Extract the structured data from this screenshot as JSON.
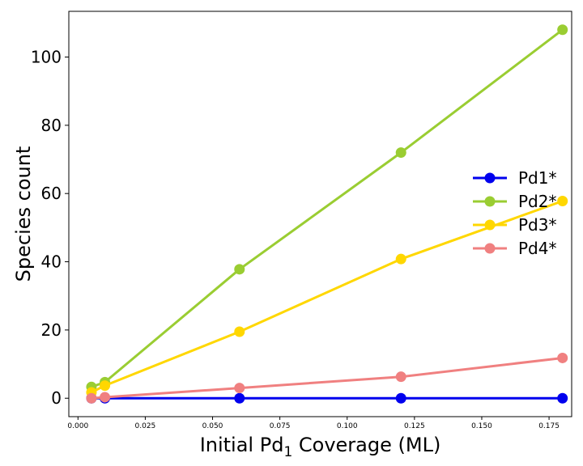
{
  "chart_data": {
    "type": "line",
    "xlabel": {
      "main": "Initial Pd",
      "sub": "1",
      "tail": " Coverage (ML)"
    },
    "ylabel": "Species count",
    "xlim": [
      -0.0034,
      0.1834
    ],
    "ylim": [
      -5.4,
      113.4
    ],
    "xticks": [
      0.0,
      0.025,
      0.05,
      0.075,
      0.1,
      0.125,
      0.15,
      0.175
    ],
    "xtick_labels": [
      "0.000",
      "0.025",
      "0.050",
      "0.075",
      "0.100",
      "0.125",
      "0.150",
      "0.175"
    ],
    "yticks": [
      0,
      20,
      40,
      60,
      80,
      100
    ],
    "ytick_labels": [
      "0",
      "20",
      "40",
      "60",
      "80",
      "100"
    ],
    "grid": false,
    "legend_position": "right",
    "x": [
      0.005,
      0.01,
      0.06,
      0.12,
      0.18
    ],
    "series": [
      {
        "name": "Pd1*",
        "color": "#0000ee",
        "values": [
          0,
          0,
          0,
          0,
          0
        ]
      },
      {
        "name": "Pd2*",
        "color": "#9acd32",
        "values": [
          3.3,
          4.7,
          37.8,
          72,
          108
        ]
      },
      {
        "name": "Pd3*",
        "color": "#ffd700",
        "values": [
          1.7,
          3.7,
          19.5,
          40.8,
          57.8
        ]
      },
      {
        "name": "Pd4*",
        "color": "#f08080",
        "values": [
          0,
          0.3,
          3,
          6.3,
          11.8
        ]
      }
    ]
  }
}
